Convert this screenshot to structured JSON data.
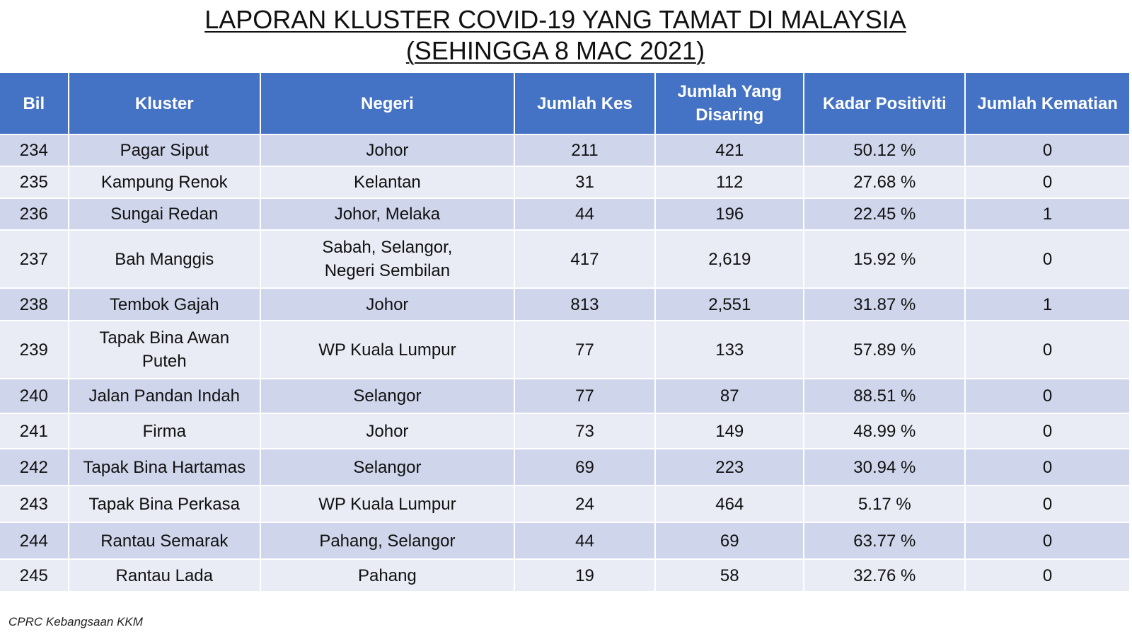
{
  "title": {
    "line1": "LAPORAN KLUSTER COVID-19 YANG TAMAT DI MALAYSIA",
    "line2": "(SEHINGGA  8 MAC 2021)"
  },
  "table": {
    "headers": {
      "bil": "Bil",
      "kluster": "Kluster",
      "negeri": "Negeri",
      "jumlah_kes": "Jumlah Kes",
      "jumlah_disaring_1": "Jumlah Yang",
      "jumlah_disaring_2": "Disaring",
      "kadar_positiviti": "Kadar Positiviti",
      "jumlah_kematian": "Jumlah Kematian"
    },
    "rows": [
      {
        "bil": "234",
        "kluster": "Pagar Siput",
        "kluster2": "",
        "negeri": "Johor",
        "negeri2": "",
        "kes": "211",
        "disaring": "421",
        "positiviti": "50.12 %",
        "kematian": "0"
      },
      {
        "bil": "235",
        "kluster": "Kampung Renok",
        "kluster2": "",
        "negeri": "Kelantan",
        "negeri2": "",
        "kes": "31",
        "disaring": "112",
        "positiviti": "27.68 %",
        "kematian": "0"
      },
      {
        "bil": "236",
        "kluster": "Sungai Redan",
        "kluster2": "",
        "negeri": "Johor, Melaka",
        "negeri2": "",
        "kes": "44",
        "disaring": "196",
        "positiviti": "22.45 %",
        "kematian": "1"
      },
      {
        "bil": "237",
        "kluster": "Bah Manggis",
        "kluster2": "",
        "negeri": "Sabah, Selangor,",
        "negeri2": "Negeri Sembilan",
        "kes": "417",
        "disaring": "2,619",
        "positiviti": "15.92 %",
        "kematian": "0"
      },
      {
        "bil": "238",
        "kluster": "Tembok Gajah",
        "kluster2": "",
        "negeri": "Johor",
        "negeri2": "",
        "kes": "813",
        "disaring": "2,551",
        "positiviti": "31.87 %",
        "kematian": "1"
      },
      {
        "bil": "239",
        "kluster": "Tapak Bina Awan",
        "kluster2": "Puteh",
        "negeri": "WP Kuala Lumpur",
        "negeri2": "",
        "kes": "77",
        "disaring": "133",
        "positiviti": "57.89 %",
        "kematian": "0"
      },
      {
        "bil": "240",
        "kluster": "Jalan Pandan Indah",
        "kluster2": "",
        "negeri": "Selangor",
        "negeri2": "",
        "kes": "77",
        "disaring": "87",
        "positiviti": "88.51 %",
        "kematian": "0"
      },
      {
        "bil": "241",
        "kluster": "Firma",
        "kluster2": "",
        "negeri": "Johor",
        "negeri2": "",
        "kes": "73",
        "disaring": "149",
        "positiviti": "48.99 %",
        "kematian": "0"
      },
      {
        "bil": "242",
        "kluster": "Tapak Bina Hartamas",
        "kluster2": "",
        "negeri": "Selangor",
        "negeri2": "",
        "kes": "69",
        "disaring": "223",
        "positiviti": "30.94 %",
        "kematian": "0"
      },
      {
        "bil": "243",
        "kluster": "Tapak Bina Perkasa",
        "kluster2": "",
        "negeri": "WP Kuala Lumpur",
        "negeri2": "",
        "kes": "24",
        "disaring": "464",
        "positiviti": "5.17 %",
        "kematian": "0"
      },
      {
        "bil": "244",
        "kluster": "Rantau Semarak",
        "kluster2": "",
        "negeri": "Pahang, Selangor",
        "negeri2": "",
        "kes": "44",
        "disaring": "69",
        "positiviti": "63.77 %",
        "kematian": "0"
      },
      {
        "bil": "245",
        "kluster": "Rantau Lada",
        "kluster2": "",
        "negeri": "Pahang",
        "negeri2": "",
        "kes": "19",
        "disaring": "58",
        "positiviti": "32.76 %",
        "kematian": "0"
      }
    ]
  },
  "footer": {
    "source": "CPRC Kebangsaan KKM"
  },
  "colors": {
    "header_bg": "#4472c4",
    "row_odd_bg": "#cfd5ea",
    "row_even_bg": "#e9ebf5"
  }
}
